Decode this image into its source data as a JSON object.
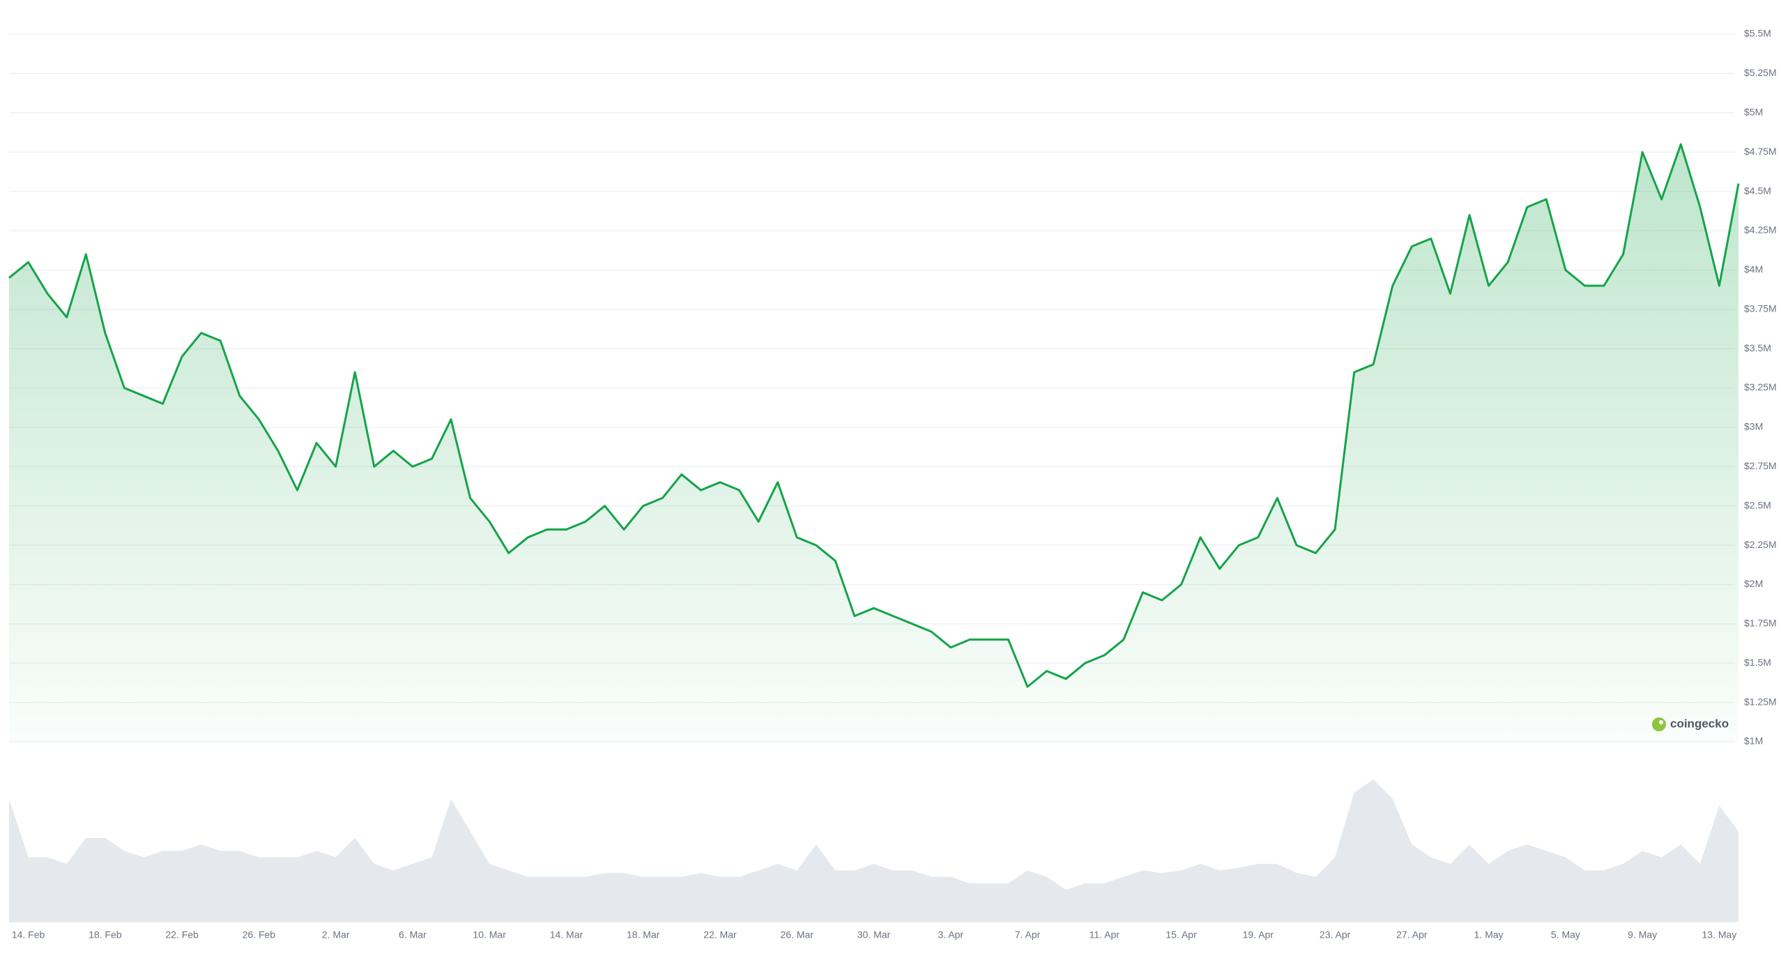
{
  "chart_data": {
    "type": "line",
    "watermark": "coingecko",
    "categories": [
      null,
      "14. Feb",
      null,
      null,
      null,
      "18. Feb",
      null,
      null,
      null,
      "22. Feb",
      null,
      null,
      null,
      "26. Feb",
      null,
      null,
      null,
      "2. Mar",
      null,
      null,
      null,
      "6. Mar",
      null,
      null,
      null,
      "10. Mar",
      null,
      null,
      null,
      "14. Mar",
      null,
      null,
      null,
      "18. Mar",
      null,
      null,
      null,
      "22. Mar",
      null,
      null,
      null,
      "26. Mar",
      null,
      null,
      null,
      "30. Mar",
      null,
      null,
      null,
      "3. Apr",
      null,
      null,
      null,
      "7. Apr",
      null,
      null,
      null,
      "11. Apr",
      null,
      null,
      null,
      "15. Apr",
      null,
      null,
      null,
      "19. Apr",
      null,
      null,
      null,
      "23. Apr",
      null,
      null,
      null,
      "27. Apr",
      null,
      null,
      null,
      "1. May",
      null,
      null,
      null,
      "5. May",
      null,
      null,
      null,
      "9. May",
      null,
      null,
      null,
      "13. May",
      null
    ],
    "series": [
      {
        "color": "#16a34a",
        "values": [
          3950000,
          4050000,
          3850000,
          3700000,
          4100000,
          3600000,
          3250000,
          3200000,
          3150000,
          3450000,
          3600000,
          3550000,
          3200000,
          3050000,
          2850000,
          2600000,
          2900000,
          2750000,
          3350000,
          2750000,
          2850000,
          2750000,
          2800000,
          3050000,
          2550000,
          2400000,
          2200000,
          2300000,
          2350000,
          2350000,
          2400000,
          2500000,
          2350000,
          2500000,
          2550000,
          2700000,
          2600000,
          2650000,
          2600000,
          2400000,
          2650000,
          2300000,
          2250000,
          2150000,
          1800000,
          1850000,
          1800000,
          1750000,
          1700000,
          1600000,
          1650000,
          1650000,
          1650000,
          1350000,
          1450000,
          1400000,
          1500000,
          1550000,
          1650000,
          1950000,
          1900000,
          2000000,
          2300000,
          2100000,
          2250000,
          2300000,
          2550000,
          2250000,
          2200000,
          2350000,
          3350000,
          3400000,
          3900000,
          4150000,
          4200000,
          3850000,
          4350000,
          3900000,
          4050000,
          4400000,
          4450000,
          4000000,
          3900000,
          3900000,
          4100000,
          4750000,
          4450000,
          4800000,
          4400000,
          3900000,
          4550000
        ]
      }
    ],
    "volume": {
      "color": "#e5e9ee",
      "values": [
        95,
        50,
        50,
        45,
        65,
        65,
        55,
        50,
        55,
        55,
        60,
        55,
        55,
        50,
        50,
        50,
        55,
        50,
        65,
        45,
        40,
        45,
        50,
        95,
        70,
        45,
        40,
        35,
        35,
        35,
        35,
        38,
        38,
        35,
        35,
        35,
        38,
        35,
        35,
        40,
        45,
        40,
        60,
        40,
        40,
        45,
        40,
        40,
        35,
        35,
        30,
        30,
        30,
        40,
        35,
        25,
        30,
        30,
        35,
        40,
        38,
        40,
        45,
        40,
        42,
        45,
        45,
        38,
        35,
        50,
        100,
        110,
        95,
        60,
        50,
        45,
        60,
        45,
        55,
        60,
        55,
        50,
        40,
        40,
        45,
        55,
        50,
        60,
        45,
        90,
        70
      ]
    },
    "ylim": [
      1000000,
      5500000
    ],
    "yticks": [
      {
        "value": 1000000,
        "label": "$1M"
      },
      {
        "value": 1250000,
        "label": "$1.25M"
      },
      {
        "value": 1500000,
        "label": "$1.5M"
      },
      {
        "value": 1750000,
        "label": "$1.75M"
      },
      {
        "value": 2000000,
        "label": "$2M"
      },
      {
        "value": 2250000,
        "label": "$2.25M"
      },
      {
        "value": 2500000,
        "label": "$2.5M"
      },
      {
        "value": 2750000,
        "label": "$2.75M"
      },
      {
        "value": 3000000,
        "label": "$3M"
      },
      {
        "value": 3250000,
        "label": "$3.25M"
      },
      {
        "value": 3500000,
        "label": "$3.5M"
      },
      {
        "value": 3750000,
        "label": "$3.75M"
      },
      {
        "value": 4000000,
        "label": "$4M"
      },
      {
        "value": 4250000,
        "label": "$4.25M"
      },
      {
        "value": 4500000,
        "label": "$4.5M"
      },
      {
        "value": 4750000,
        "label": "$4.75M"
      },
      {
        "value": 5000000,
        "label": "$5M"
      },
      {
        "value": 5250000,
        "label": "$5.25M"
      },
      {
        "value": 5500000,
        "label": "$5.5M"
      }
    ],
    "grid": true
  }
}
